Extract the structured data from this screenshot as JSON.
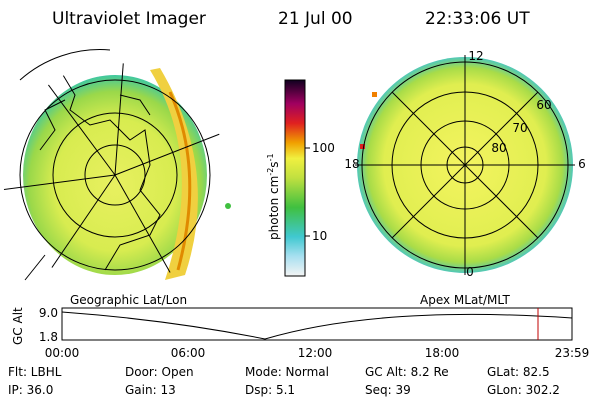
{
  "header": {
    "title": "Ultraviolet Imager",
    "date": "21 Jul 00",
    "time": "22:33:06 UT"
  },
  "colorbar": {
    "label": "photon cm",
    "label_exp1": "-2",
    "label_unit2": "s",
    "label_exp2": "-1",
    "ticks": [
      "100",
      "10"
    ]
  },
  "polar_plot": {
    "labels": [
      "12",
      "18",
      "6",
      "0",
      "60",
      "70",
      "80"
    ]
  },
  "altitude_plot": {
    "axis_label": "GC Alt",
    "left_title": "Geographic Lat/Lon",
    "right_title": "Apex MLat/MLT",
    "yticks": [
      "9.0",
      "1.8"
    ],
    "xticks": [
      "00:00",
      "06:00",
      "12:00",
      "18:00",
      "23:59"
    ]
  },
  "info": {
    "row1": [
      "Flt: LBHL",
      "Door: Open",
      "Mode: Normal",
      "GC Alt: 8.2 Re",
      "GLat: 82.5"
    ],
    "row2": [
      "IP: 36.0",
      "Gain: 13",
      "Dsp: 5.1",
      "Seq: 39",
      "GLon: 302.2"
    ]
  }
}
